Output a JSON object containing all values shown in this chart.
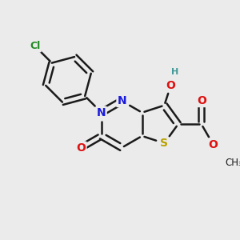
{
  "bg_color": "#ebebeb",
  "bond_color": "#1a1a1a",
  "bond_width": 1.8,
  "atom_colors": {
    "S": "#b8a000",
    "N": "#1a1add",
    "O": "#dd1111",
    "Cl": "#228822",
    "H": "#449999",
    "C": "#1a1a1a"
  },
  "scale": 38,
  "ox": 148,
  "oy": 155
}
